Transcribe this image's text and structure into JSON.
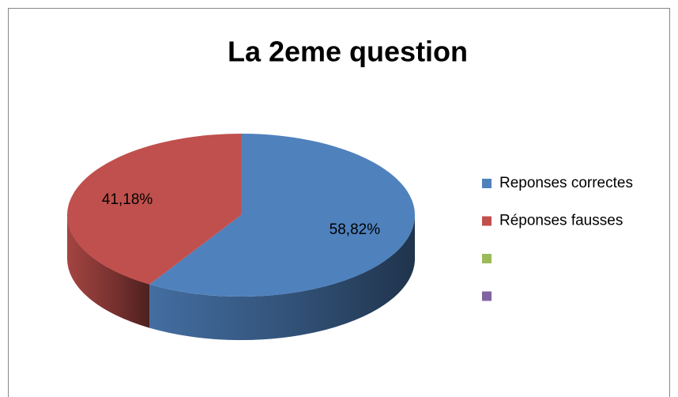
{
  "chart_data": {
    "type": "pie",
    "title": "La 2eme question",
    "categories": [
      "Reponses correctes",
      "Réponses fausses",
      null,
      null
    ],
    "values": [
      58.82,
      41.18,
      null,
      null
    ],
    "value_labels": [
      "58,82%",
      "41,18%",
      null,
      null
    ],
    "colors": [
      "#4f81bd",
      "#c0504d",
      "#9bbb59",
      "#8064a2"
    ],
    "legend": "right"
  }
}
